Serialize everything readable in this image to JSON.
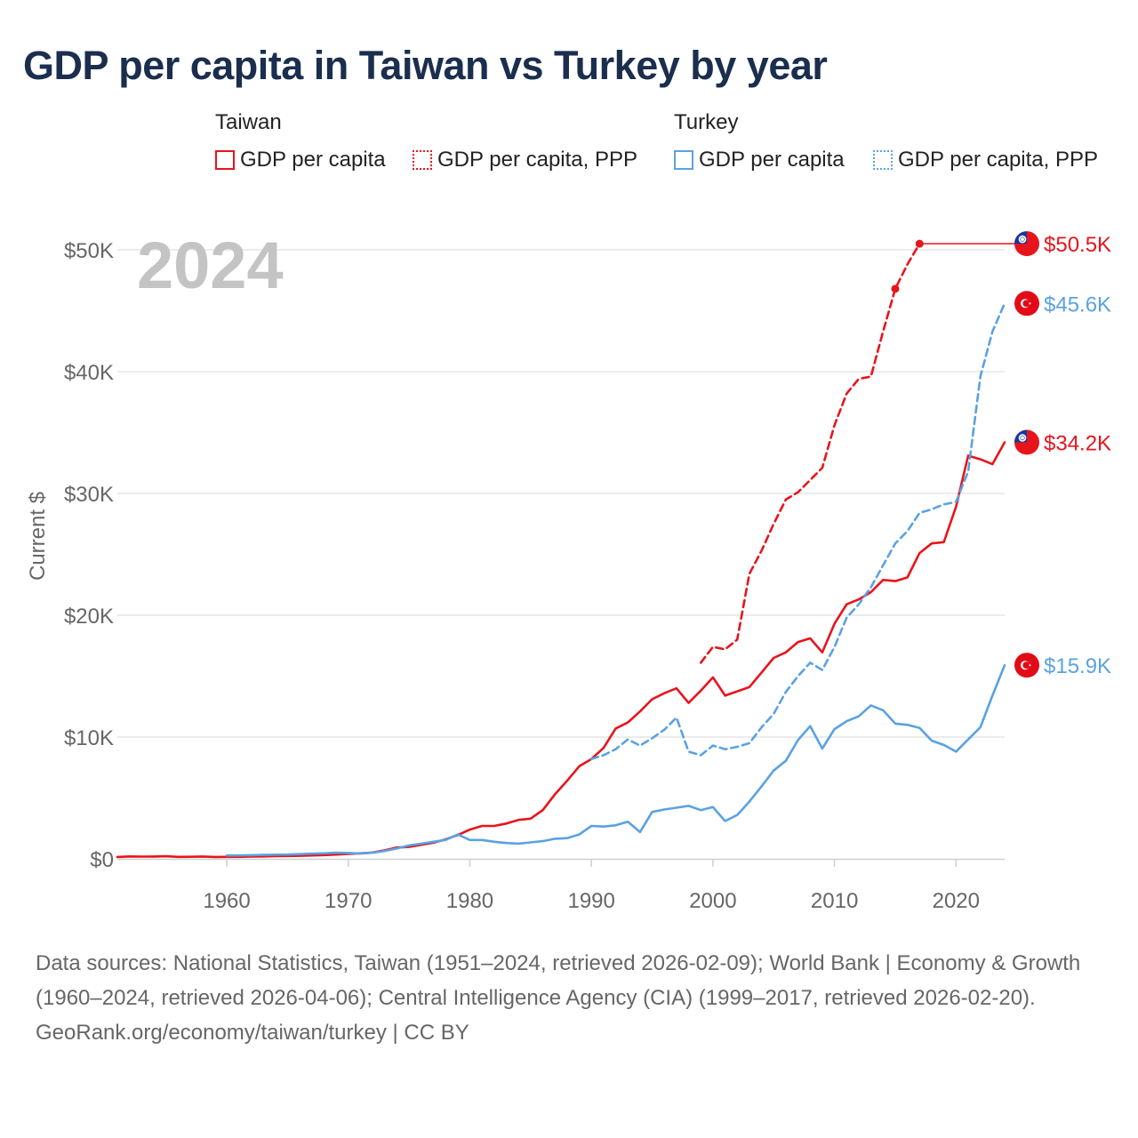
{
  "title": "GDP per capita in Taiwan vs Turkey by year",
  "legend": {
    "groups": [
      {
        "name": "Taiwan",
        "items": [
          {
            "label": "GDP per capita",
            "color": "#e8141c",
            "style": "solid"
          },
          {
            "label": "GDP per capita, PPP",
            "color": "#e8141c",
            "style": "dotted"
          }
        ]
      },
      {
        "name": "Turkey",
        "items": [
          {
            "label": "GDP per capita",
            "color": "#5aa2e2",
            "style": "solid"
          },
          {
            "label": "GDP per capita, PPP",
            "color": "#5aa2e2",
            "style": "dotted"
          }
        ]
      }
    ]
  },
  "footer": {
    "sources": "Data sources: National Statistics, Taiwan (1951–2024, retrieved 2026-02-09); World Bank | Economy & Growth (1960–2024, retrieved 2026-04-06); Central Intelligence Agency (CIA) (1999–2017, retrieved 2026-02-20).",
    "credit": "GeoRank.org/economy/taiwan/turkey | CC BY"
  },
  "chart_data": {
    "type": "line",
    "title": "GDP per capita in Taiwan vs Turkey by year",
    "ylabel": "Current $",
    "xlabel": "",
    "year_label": "2024",
    "xlim": [
      1951,
      2024
    ],
    "ylim": [
      0,
      52000
    ],
    "x_ticks": [
      1960,
      1970,
      1980,
      1990,
      2000,
      2010,
      2020
    ],
    "y_ticks": [
      {
        "value": 0,
        "label": "$0"
      },
      {
        "value": 10000,
        "label": "$10K"
      },
      {
        "value": 20000,
        "label": "$20K"
      },
      {
        "value": 30000,
        "label": "$30K"
      },
      {
        "value": 40000,
        "label": "$40K"
      },
      {
        "value": 50000,
        "label": "$50K"
      }
    ],
    "grid": true,
    "series": [
      {
        "name": "Taiwan GDP per capita",
        "country": "taiwan",
        "color": "#e8141c",
        "dash": "solid",
        "end_label": "$34.2K",
        "x": [
          1951,
          1952,
          1953,
          1954,
          1955,
          1956,
          1957,
          1958,
          1959,
          1960,
          1961,
          1962,
          1963,
          1964,
          1965,
          1966,
          1967,
          1968,
          1969,
          1970,
          1971,
          1972,
          1973,
          1974,
          1975,
          1976,
          1977,
          1978,
          1979,
          1980,
          1981,
          1982,
          1983,
          1984,
          1985,
          1986,
          1987,
          1988,
          1989,
          1990,
          1991,
          1992,
          1993,
          1994,
          1995,
          1996,
          1997,
          1998,
          1999,
          2000,
          2001,
          2002,
          2003,
          2004,
          2005,
          2006,
          2007,
          2008,
          2009,
          2010,
          2011,
          2012,
          2013,
          2014,
          2015,
          2016,
          2017,
          2018,
          2019,
          2020,
          2021,
          2022,
          2023,
          2024
        ],
        "values": [
          150,
          200,
          180,
          190,
          210,
          160,
          170,
          190,
          150,
          160,
          160,
          180,
          200,
          220,
          230,
          250,
          280,
          310,
          350,
          400,
          450,
          520,
          700,
          930,
          980,
          1150,
          1320,
          1600,
          1950,
          2400,
          2700,
          2700,
          2900,
          3200,
          3300,
          4000,
          5300,
          6400,
          7600,
          8200,
          9100,
          10700,
          11200,
          12100,
          13100,
          13600,
          14000,
          12800,
          13800,
          14900,
          13400,
          13750,
          14100,
          15300,
          16500,
          16950,
          17800,
          18100,
          16950,
          19300,
          20900,
          21300,
          21900,
          22900,
          22800,
          23100,
          25100,
          25900,
          26000,
          28900,
          33100,
          32800,
          32400,
          34200
        ]
      },
      {
        "name": "Taiwan GDP per capita, PPP",
        "country": "taiwan",
        "color": "#e8141c",
        "dash": "dashed",
        "end_label": "$50.5K",
        "x": [
          1999,
          2000,
          2001,
          2002,
          2003,
          2004,
          2005,
          2006,
          2007,
          2008,
          2009,
          2010,
          2011,
          2012,
          2013,
          2014,
          2015,
          2016,
          2017
        ],
        "values": [
          16100,
          17400,
          17200,
          18000,
          23400,
          25300,
          27500,
          29500,
          30100,
          31100,
          32100,
          35600,
          38200,
          39400,
          39600,
          43300,
          46800,
          48800,
          50500
        ],
        "markers": [
          2015,
          2017
        ],
        "flat_to": 2024
      },
      {
        "name": "Turkey GDP per capita",
        "country": "turkey",
        "color": "#5aa2e2",
        "dash": "solid",
        "end_label": "$15.9K",
        "x": [
          1960,
          1961,
          1962,
          1963,
          1964,
          1965,
          1966,
          1967,
          1968,
          1969,
          1970,
          1971,
          1972,
          1973,
          1974,
          1975,
          1976,
          1977,
          1978,
          1979,
          1980,
          1981,
          1982,
          1983,
          1984,
          1985,
          1986,
          1987,
          1988,
          1989,
          1990,
          1991,
          1992,
          1993,
          1994,
          1995,
          1996,
          1997,
          1998,
          1999,
          2000,
          2001,
          2002,
          2003,
          2004,
          2005,
          2006,
          2007,
          2008,
          2009,
          2010,
          2011,
          2012,
          2013,
          2014,
          2015,
          2016,
          2017,
          2018,
          2019,
          2020,
          2021,
          2022,
          2023,
          2024
        ],
        "values": [
          280,
          280,
          300,
          320,
          340,
          350,
          390,
          420,
          450,
          500,
          480,
          430,
          500,
          650,
          850,
          1100,
          1250,
          1400,
          1550,
          2000,
          1550,
          1550,
          1400,
          1300,
          1250,
          1350,
          1450,
          1650,
          1700,
          2000,
          2700,
          2650,
          2750,
          3050,
          2200,
          3850,
          4050,
          4200,
          4350,
          4000,
          4250,
          3100,
          3600,
          4700,
          5950,
          7250,
          8050,
          9750,
          10900,
          9050,
          10650,
          11300,
          11700,
          12600,
          12200,
          11100,
          11000,
          10750,
          9700,
          9350,
          8800,
          9800,
          10800,
          13400,
          15900
        ]
      },
      {
        "name": "Turkey GDP per capita, PPP",
        "country": "turkey",
        "color": "#5aa2e2",
        "dash": "dashed",
        "end_label": "$45.6K",
        "x": [
          1990,
          1991,
          1992,
          1993,
          1994,
          1995,
          1996,
          1997,
          1998,
          1999,
          2000,
          2001,
          2002,
          2003,
          2004,
          2005,
          2006,
          2007,
          2008,
          2009,
          2010,
          2011,
          2012,
          2013,
          2014,
          2015,
          2016,
          2017,
          2018,
          2019,
          2020,
          2021,
          2022,
          2023,
          2024
        ],
        "values": [
          8200,
          8500,
          9000,
          9800,
          9300,
          9900,
          10600,
          11600,
          8800,
          8500,
          9300,
          9000,
          9200,
          9500,
          10800,
          11900,
          13700,
          15000,
          16100,
          15500,
          17400,
          19800,
          20900,
          22300,
          24100,
          25900,
          26900,
          28400,
          28700,
          29100,
          29300,
          31800,
          39600,
          43300,
          45600
        ]
      }
    ],
    "end_flags": [
      {
        "country": "taiwan",
        "value": 50500,
        "label": "$50.5K",
        "color": "#e8141c"
      },
      {
        "country": "turkey",
        "value": 45600,
        "label": "$45.6K",
        "color": "#5aa2e2"
      },
      {
        "country": "taiwan",
        "value": 34200,
        "label": "$34.2K",
        "color": "#e8141c"
      },
      {
        "country": "turkey",
        "value": 15900,
        "label": "$15.9K",
        "color": "#5aa2e2"
      }
    ]
  }
}
